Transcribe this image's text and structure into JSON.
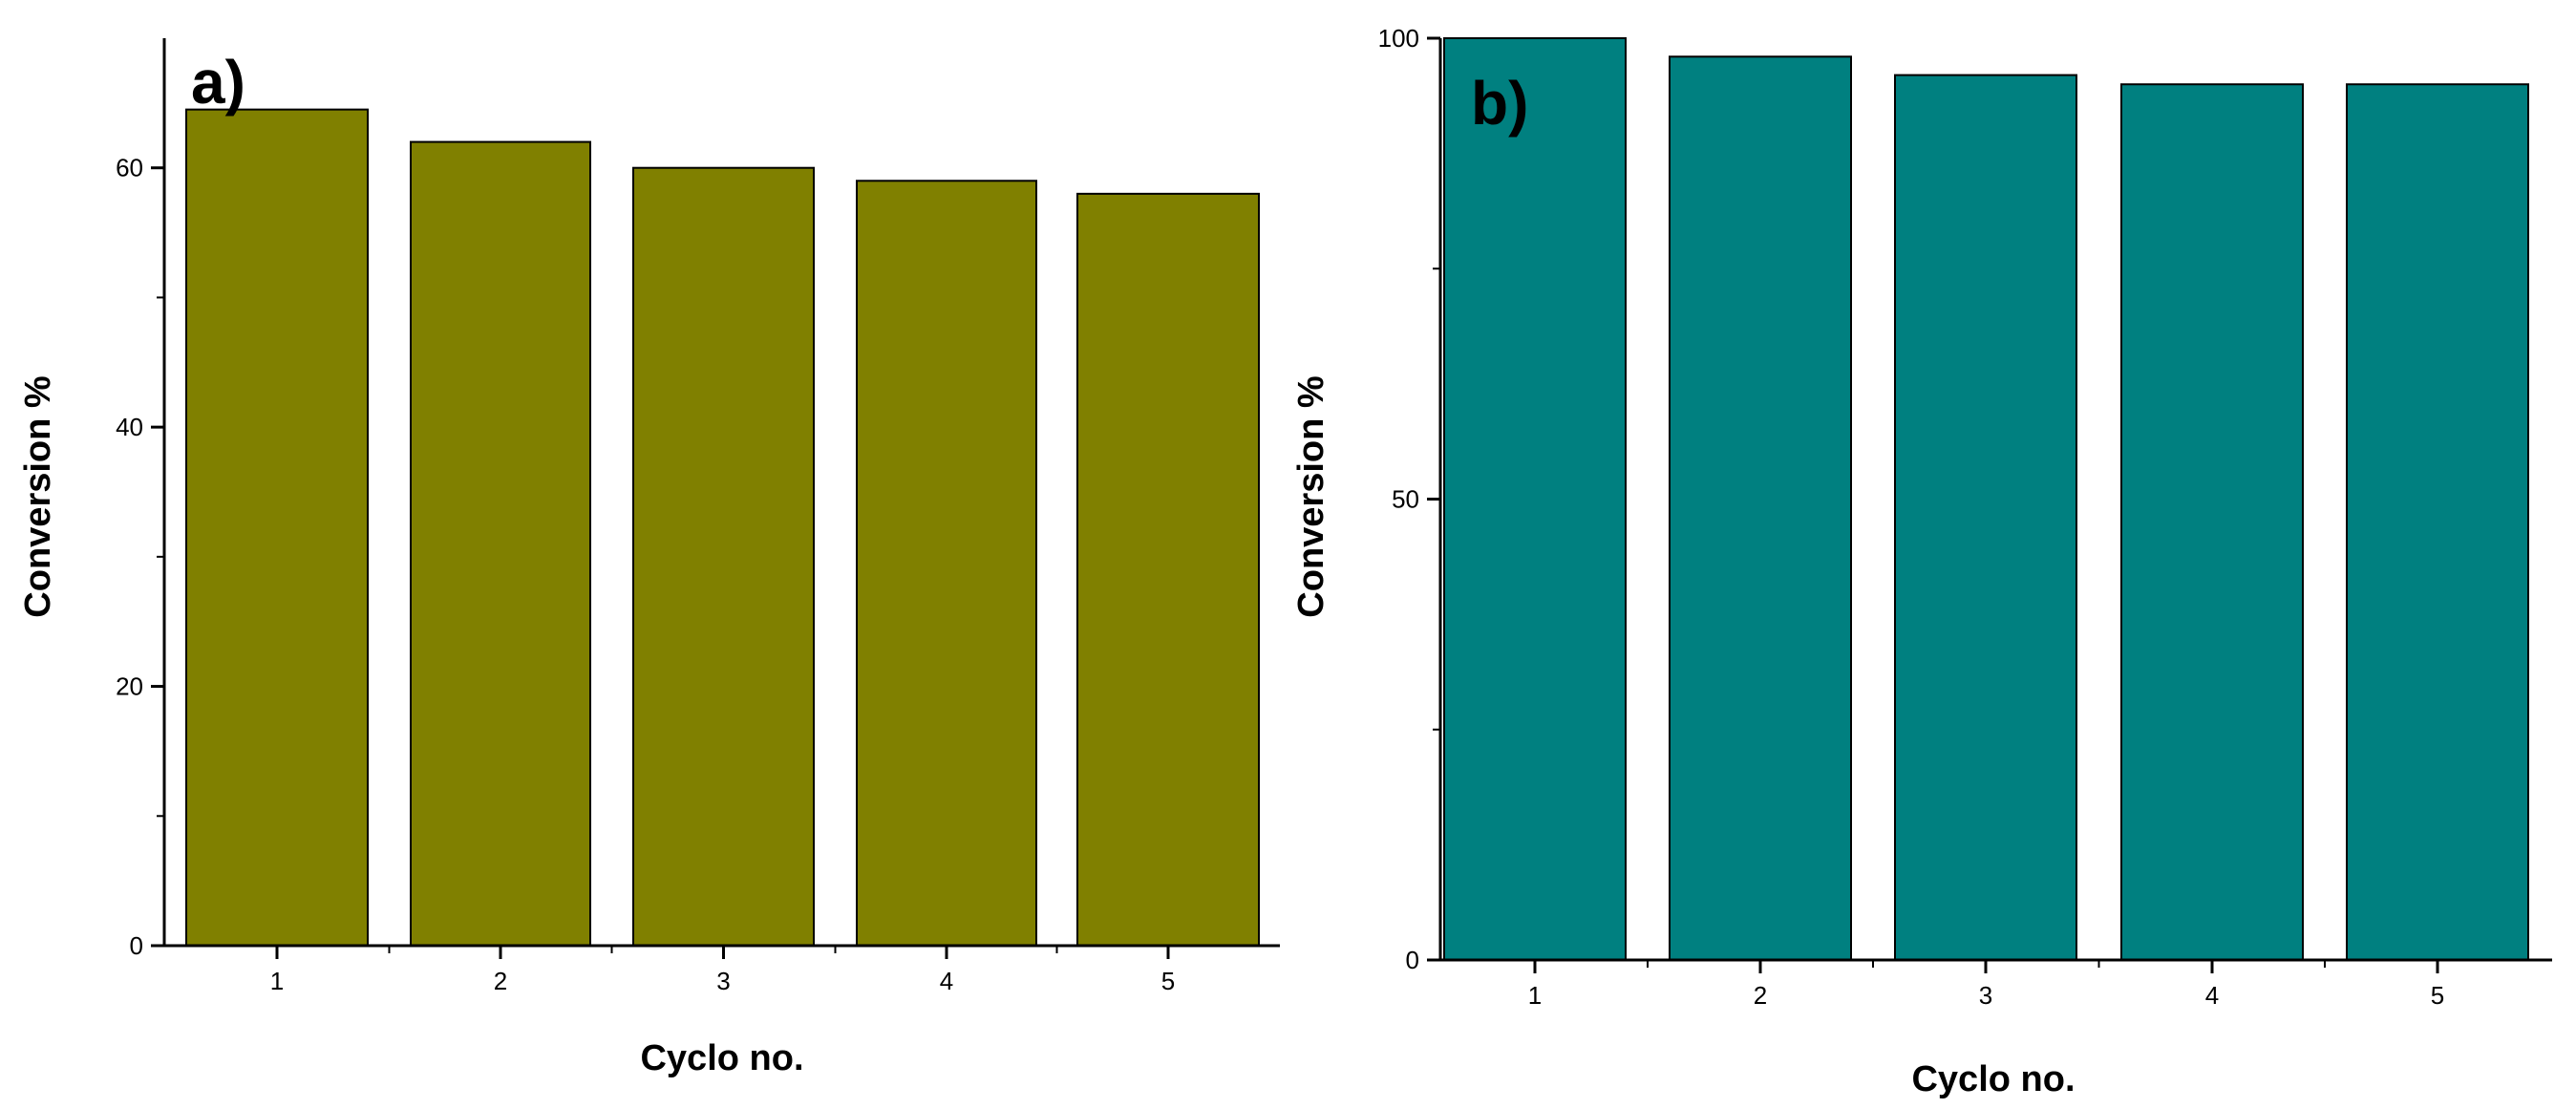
{
  "chart_data": [
    {
      "type": "bar",
      "panel_label": "a)",
      "categories": [
        "1",
        "2",
        "3",
        "4",
        "5"
      ],
      "values": [
        64.5,
        62,
        60,
        59,
        58
      ],
      "xlabel": "Cyclo no.",
      "ylabel": "Conversion %",
      "ylim": [
        0,
        70
      ],
      "yticks": [
        0,
        20,
        40,
        60
      ],
      "bar_color": "#808000",
      "grid": false
    },
    {
      "type": "bar",
      "panel_label": "b)",
      "categories": [
        "1",
        "2",
        "3",
        "4",
        "5"
      ],
      "values": [
        100,
        98,
        96,
        95,
        95
      ],
      "xlabel": "Cyclo no.",
      "ylabel": "Conversion %",
      "ylim": [
        0,
        100
      ],
      "yticks": [
        0,
        50,
        100
      ],
      "bar_color": "#008080",
      "grid": false
    }
  ]
}
